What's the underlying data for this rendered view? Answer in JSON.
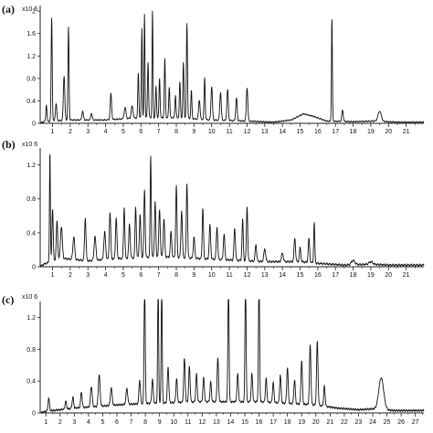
{
  "chart_data": [
    {
      "type": "line",
      "panel_label": "(a)",
      "scale_label": "x10 6",
      "y_ticks": [
        "0",
        "0.4",
        "0.8",
        "1.2",
        "1.6",
        "2"
      ],
      "y_tick_values": [
        0,
        0.4,
        0.8,
        1.2,
        1.6,
        2
      ],
      "x_ticks": [
        "1",
        "2",
        "3",
        "4",
        "5",
        "6",
        "7",
        "8",
        "9",
        "10",
        "11",
        "12",
        "13",
        "14",
        "15",
        "16",
        "17",
        "18",
        "19",
        "20",
        "21"
      ],
      "x_tick_values": [
        1,
        2,
        3,
        4,
        5,
        6,
        7,
        8,
        9,
        10,
        11,
        12,
        13,
        14,
        15,
        16,
        17,
        18,
        19,
        20,
        21
      ],
      "xlim": [
        0.3,
        22.0
      ],
      "ylim": [
        0,
        2.1
      ],
      "baseline": [
        [
          0.3,
          0
        ],
        [
          0.5,
          0.03
        ],
        [
          2.0,
          0.06
        ],
        [
          4.0,
          0.06
        ],
        [
          6.0,
          0.1
        ],
        [
          8.0,
          0.1
        ],
        [
          10.0,
          0.06
        ],
        [
          12.0,
          0.04
        ],
        [
          13.5,
          0.02
        ],
        [
          14.5,
          0.06
        ],
        [
          15.2,
          0.17
        ],
        [
          15.8,
          0.12
        ],
        [
          16.5,
          0.04
        ],
        [
          18.0,
          0.03
        ],
        [
          19.3,
          0.04
        ],
        [
          20.5,
          0.02
        ],
        [
          22.0,
          0.02
        ]
      ],
      "peaks": [
        [
          0.65,
          0.3,
          0.03
        ],
        [
          0.95,
          1.85,
          0.03
        ],
        [
          1.2,
          0.3,
          0.04
        ],
        [
          1.65,
          0.8,
          0.04
        ],
        [
          1.9,
          1.65,
          0.03
        ],
        [
          2.7,
          0.16,
          0.04
        ],
        [
          3.2,
          0.12,
          0.04
        ],
        [
          4.3,
          0.46,
          0.04
        ],
        [
          5.1,
          0.2,
          0.05
        ],
        [
          5.5,
          0.22,
          0.05
        ],
        [
          5.85,
          0.8,
          0.03
        ],
        [
          6.05,
          1.6,
          0.025
        ],
        [
          6.2,
          1.85,
          0.025
        ],
        [
          6.4,
          1.0,
          0.03
        ],
        [
          6.65,
          1.9,
          0.025
        ],
        [
          6.85,
          0.55,
          0.03
        ],
        [
          7.05,
          0.7,
          0.03
        ],
        [
          7.35,
          1.05,
          0.03
        ],
        [
          7.6,
          0.55,
          0.03
        ],
        [
          7.95,
          0.4,
          0.03
        ],
        [
          8.2,
          0.65,
          0.03
        ],
        [
          8.4,
          1.0,
          0.03
        ],
        [
          8.6,
          1.7,
          0.03
        ],
        [
          8.85,
          0.5,
          0.03
        ],
        [
          9.3,
          0.35,
          0.04
        ],
        [
          9.6,
          0.75,
          0.03
        ],
        [
          10.0,
          0.6,
          0.04
        ],
        [
          10.5,
          0.5,
          0.04
        ],
        [
          10.9,
          0.55,
          0.04
        ],
        [
          11.4,
          0.4,
          0.04
        ],
        [
          12.0,
          0.6,
          0.04
        ],
        [
          16.8,
          1.85,
          0.025
        ],
        [
          17.4,
          0.2,
          0.04
        ],
        [
          19.5,
          0.18,
          0.09
        ]
      ]
    },
    {
      "type": "line",
      "panel_label": "(b)",
      "scale_label": "x10 6",
      "y_ticks": [
        "0",
        "0.4",
        "0.8",
        "1.2"
      ],
      "y_tick_values": [
        0,
        0.4,
        0.8,
        1.2
      ],
      "x_ticks": [
        "1",
        "2",
        "3",
        "4",
        "5",
        "6",
        "7",
        "8",
        "9",
        "10",
        "11",
        "12",
        "13",
        "14",
        "15",
        "16",
        "17",
        "18",
        "19",
        "20",
        "21"
      ],
      "x_tick_values": [
        1,
        2,
        3,
        4,
        5,
        6,
        7,
        8,
        9,
        10,
        11,
        12,
        13,
        14,
        15,
        16,
        17,
        18,
        19,
        20,
        21
      ],
      "xlim": [
        0.3,
        22.0
      ],
      "ylim": [
        0,
        1.4
      ],
      "baseline": [
        [
          0.3,
          0
        ],
        [
          0.5,
          0.03
        ],
        [
          1.5,
          0.1
        ],
        [
          3.0,
          0.07
        ],
        [
          5.0,
          0.1
        ],
        [
          7.0,
          0.12
        ],
        [
          9.0,
          0.1
        ],
        [
          11.0,
          0.08
        ],
        [
          13.0,
          0.06
        ],
        [
          15.0,
          0.06
        ],
        [
          16.0,
          0.04
        ],
        [
          17.5,
          0.02
        ],
        [
          19.0,
          0.03
        ],
        [
          20.0,
          0.02
        ],
        [
          22.0,
          0.02
        ]
      ],
      "peaks": [
        [
          0.85,
          1.3,
          0.025
        ],
        [
          1.0,
          0.62,
          0.035
        ],
        [
          1.25,
          0.45,
          0.04
        ],
        [
          1.5,
          0.38,
          0.05
        ],
        [
          2.2,
          0.27,
          0.05
        ],
        [
          2.85,
          0.5,
          0.04
        ],
        [
          3.4,
          0.28,
          0.05
        ],
        [
          3.95,
          0.32,
          0.05
        ],
        [
          4.25,
          0.55,
          0.04
        ],
        [
          4.6,
          0.48,
          0.04
        ],
        [
          5.05,
          0.6,
          0.035
        ],
        [
          5.35,
          0.4,
          0.04
        ],
        [
          5.7,
          0.6,
          0.035
        ],
        [
          5.95,
          0.5,
          0.04
        ],
        [
          6.2,
          0.8,
          0.035
        ],
        [
          6.55,
          1.2,
          0.03
        ],
        [
          6.8,
          0.65,
          0.035
        ],
        [
          7.05,
          0.55,
          0.04
        ],
        [
          7.3,
          0.45,
          0.04
        ],
        [
          7.7,
          0.3,
          0.04
        ],
        [
          8.0,
          0.85,
          0.035
        ],
        [
          8.3,
          0.55,
          0.04
        ],
        [
          8.6,
          0.88,
          0.035
        ],
        [
          9.0,
          0.25,
          0.04
        ],
        [
          9.5,
          0.6,
          0.035
        ],
        [
          9.9,
          0.4,
          0.04
        ],
        [
          10.3,
          0.38,
          0.04
        ],
        [
          10.7,
          0.3,
          0.04
        ],
        [
          11.3,
          0.38,
          0.04
        ],
        [
          11.75,
          0.48,
          0.035
        ],
        [
          12.0,
          0.65,
          0.035
        ],
        [
          12.5,
          0.2,
          0.04
        ],
        [
          13.0,
          0.15,
          0.05
        ],
        [
          14.0,
          0.1,
          0.05
        ],
        [
          14.7,
          0.28,
          0.04
        ],
        [
          15.0,
          0.16,
          0.04
        ],
        [
          15.5,
          0.28,
          0.04
        ],
        [
          15.8,
          0.48,
          0.03
        ],
        [
          18.0,
          0.05,
          0.1
        ],
        [
          19.0,
          0.03,
          0.1
        ]
      ]
    },
    {
      "type": "line",
      "panel_label": "(c)",
      "scale_label": "x10 6",
      "y_ticks": [
        "0",
        "0.4",
        "0.8",
        "1.2"
      ],
      "y_tick_values": [
        0,
        0.4,
        0.8,
        1.2
      ],
      "x_ticks": [
        "1",
        "2",
        "3",
        "4",
        "5",
        "6",
        "7",
        "8",
        "9",
        "10",
        "11",
        "12",
        "13",
        "14",
        "15",
        "16",
        "17",
        "18",
        "19",
        "20",
        "21",
        "22",
        "23",
        "24",
        "25",
        "26",
        "27"
      ],
      "x_tick_values": [
        1,
        2,
        3,
        4,
        5,
        6,
        7,
        8,
        9,
        10,
        11,
        12,
        13,
        14,
        15,
        16,
        17,
        18,
        19,
        20,
        21,
        22,
        23,
        24,
        25,
        26,
        27
      ],
      "xlim": [
        0.6,
        27.6
      ],
      "ylim": [
        0,
        1.4
      ],
      "baseline": [
        [
          0.6,
          0
        ],
        [
          1.0,
          0.02
        ],
        [
          3.0,
          0.06
        ],
        [
          6.0,
          0.1
        ],
        [
          8.0,
          0.12
        ],
        [
          12.0,
          0.14
        ],
        [
          16.0,
          0.14
        ],
        [
          20.0,
          0.1
        ],
        [
          21.5,
          0.06
        ],
        [
          23.0,
          0.04
        ],
        [
          24.0,
          0.05
        ],
        [
          25.5,
          0.03
        ],
        [
          27.6,
          0.03
        ]
      ],
      "peaks": [
        [
          1.2,
          0.16,
          0.05
        ],
        [
          2.4,
          0.1,
          0.05
        ],
        [
          2.9,
          0.14,
          0.05
        ],
        [
          3.5,
          0.2,
          0.05
        ],
        [
          4.2,
          0.26,
          0.06
        ],
        [
          4.75,
          0.4,
          0.06
        ],
        [
          5.6,
          0.22,
          0.06
        ],
        [
          6.7,
          0.2,
          0.06
        ],
        [
          7.6,
          0.3,
          0.05
        ],
        [
          7.95,
          1.55,
          0.04
        ],
        [
          8.5,
          0.3,
          0.05
        ],
        [
          8.9,
          1.55,
          0.035
        ],
        [
          9.15,
          1.55,
          0.035
        ],
        [
          9.6,
          0.45,
          0.05
        ],
        [
          10.2,
          0.3,
          0.05
        ],
        [
          10.75,
          0.55,
          0.05
        ],
        [
          11.1,
          0.45,
          0.05
        ],
        [
          11.6,
          0.35,
          0.05
        ],
        [
          12.1,
          0.3,
          0.05
        ],
        [
          12.6,
          0.25,
          0.05
        ],
        [
          13.1,
          0.55,
          0.05
        ],
        [
          13.85,
          1.55,
          0.04
        ],
        [
          14.5,
          0.35,
          0.05
        ],
        [
          15.05,
          1.55,
          0.04
        ],
        [
          15.5,
          0.35,
          0.05
        ],
        [
          16.0,
          1.55,
          0.04
        ],
        [
          16.5,
          0.3,
          0.05
        ],
        [
          17.0,
          0.25,
          0.05
        ],
        [
          17.5,
          0.35,
          0.05
        ],
        [
          18.0,
          0.45,
          0.05
        ],
        [
          18.5,
          0.3,
          0.05
        ],
        [
          19.0,
          0.55,
          0.05
        ],
        [
          19.6,
          0.75,
          0.05
        ],
        [
          20.1,
          0.8,
          0.05
        ],
        [
          20.6,
          0.25,
          0.05
        ],
        [
          24.6,
          0.4,
          0.17
        ]
      ]
    }
  ]
}
